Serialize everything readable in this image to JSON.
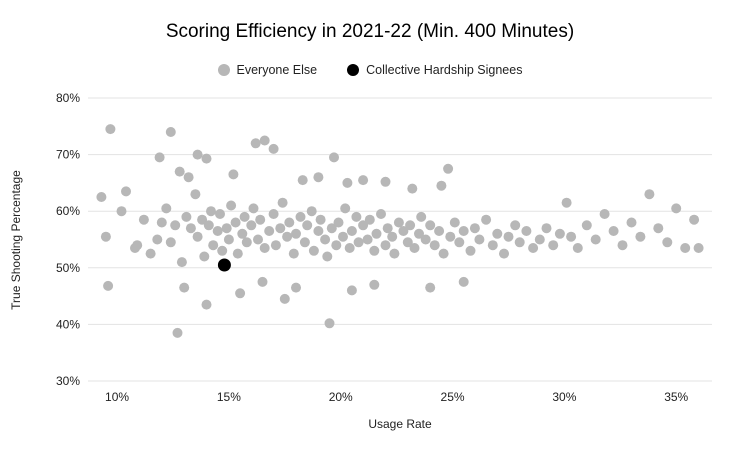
{
  "chart_data": {
    "type": "scatter",
    "title": "Scoring Efficiency in 2021-22 (Min. 400 Minutes)",
    "xlabel": "Usage Rate",
    "ylabel": "True Shooting Percentage",
    "xlim": [
      8.7,
      36.6
    ],
    "ylim": [
      30,
      80
    ],
    "grid": "horizontal",
    "legend_position": "top",
    "colors": {
      "background": "#ffffff",
      "gridline": "#e3e3e3",
      "text": "#222222",
      "everyone_else": "#b7b7b7",
      "signees": "#000000"
    },
    "x_ticks": [
      {
        "value": 10,
        "label": "10%"
      },
      {
        "value": 15,
        "label": "15%"
      },
      {
        "value": 20,
        "label": "20%"
      },
      {
        "value": 25,
        "label": "25%"
      },
      {
        "value": 30,
        "label": "30%"
      },
      {
        "value": 35,
        "label": "35%"
      }
    ],
    "y_ticks": [
      {
        "value": 30,
        "label": "30%"
      },
      {
        "value": 40,
        "label": "40%"
      },
      {
        "value": 50,
        "label": "50%"
      },
      {
        "value": 60,
        "label": "60%"
      },
      {
        "value": 70,
        "label": "70%"
      },
      {
        "value": 80,
        "label": "80%"
      }
    ],
    "series": [
      {
        "name": "Everyone Else",
        "color": "#b7b7b7",
        "radius": 5,
        "point_name": "scatter-point-everyone-else",
        "points": [
          [
            9.7,
            74.5
          ],
          [
            12.4,
            74.0
          ],
          [
            11.9,
            69.5
          ],
          [
            13.6,
            70.0
          ],
          [
            14.0,
            69.3
          ],
          [
            16.2,
            72.0
          ],
          [
            16.6,
            72.5
          ],
          [
            17.0,
            71.0
          ],
          [
            19.7,
            69.5
          ],
          [
            24.8,
            67.5
          ],
          [
            24.5,
            64.5
          ],
          [
            12.8,
            67.0
          ],
          [
            13.2,
            66.0
          ],
          [
            15.2,
            66.5
          ],
          [
            18.3,
            65.5
          ],
          [
            19.0,
            66.0
          ],
          [
            20.3,
            65.0
          ],
          [
            21.0,
            65.5
          ],
          [
            22.0,
            65.2
          ],
          [
            23.2,
            64.0
          ],
          [
            12.7,
            38.5
          ],
          [
            19.5,
            40.2
          ],
          [
            14.0,
            43.5
          ],
          [
            17.5,
            44.5
          ],
          [
            9.6,
            46.8
          ],
          [
            13.0,
            46.5
          ],
          [
            15.5,
            45.5
          ],
          [
            18.0,
            46.5
          ],
          [
            20.5,
            46.0
          ],
          [
            16.5,
            47.5
          ],
          [
            21.5,
            47.0
          ],
          [
            24.0,
            46.5
          ],
          [
            25.5,
            47.5
          ],
          [
            9.3,
            62.5
          ],
          [
            9.5,
            55.5
          ],
          [
            10.2,
            60.0
          ],
          [
            10.4,
            63.5
          ],
          [
            10.8,
            53.5
          ],
          [
            10.9,
            54.0
          ],
          [
            11.2,
            58.5
          ],
          [
            11.5,
            52.5
          ],
          [
            11.8,
            55.0
          ],
          [
            12.0,
            58.0
          ],
          [
            12.2,
            60.5
          ],
          [
            12.4,
            54.5
          ],
          [
            12.6,
            57.5
          ],
          [
            12.9,
            51.0
          ],
          [
            13.1,
            59.0
          ],
          [
            13.3,
            57.0
          ],
          [
            13.5,
            63.0
          ],
          [
            13.6,
            55.5
          ],
          [
            13.8,
            58.5
          ],
          [
            13.9,
            52.0
          ],
          [
            14.1,
            57.5
          ],
          [
            14.2,
            60.0
          ],
          [
            14.3,
            54.0
          ],
          [
            14.5,
            56.5
          ],
          [
            14.6,
            59.5
          ],
          [
            14.7,
            53.0
          ],
          [
            14.9,
            57.0
          ],
          [
            15.0,
            55.0
          ],
          [
            15.1,
            61.0
          ],
          [
            15.3,
            58.0
          ],
          [
            15.4,
            52.5
          ],
          [
            15.6,
            56.0
          ],
          [
            15.7,
            59.0
          ],
          [
            15.8,
            54.5
          ],
          [
            16.0,
            57.5
          ],
          [
            16.1,
            60.5
          ],
          [
            16.3,
            55.0
          ],
          [
            16.4,
            58.5
          ],
          [
            16.6,
            53.5
          ],
          [
            16.8,
            56.5
          ],
          [
            17.0,
            59.5
          ],
          [
            17.1,
            54.0
          ],
          [
            17.3,
            57.0
          ],
          [
            17.4,
            61.5
          ],
          [
            17.6,
            55.5
          ],
          [
            17.7,
            58.0
          ],
          [
            17.9,
            52.5
          ],
          [
            18.0,
            56.0
          ],
          [
            18.2,
            59.0
          ],
          [
            18.4,
            54.5
          ],
          [
            18.5,
            57.5
          ],
          [
            18.7,
            60.0
          ],
          [
            18.8,
            53.0
          ],
          [
            19.0,
            56.5
          ],
          [
            19.1,
            58.5
          ],
          [
            19.3,
            55.0
          ],
          [
            19.4,
            52.0
          ],
          [
            19.6,
            57.0
          ],
          [
            19.8,
            54.0
          ],
          [
            19.9,
            58.0
          ],
          [
            20.1,
            55.5
          ],
          [
            20.2,
            60.5
          ],
          [
            20.4,
            53.5
          ],
          [
            20.5,
            56.5
          ],
          [
            20.7,
            59.0
          ],
          [
            20.8,
            54.5
          ],
          [
            21.0,
            57.5
          ],
          [
            21.2,
            55.0
          ],
          [
            21.3,
            58.5
          ],
          [
            21.5,
            53.0
          ],
          [
            21.6,
            56.0
          ],
          [
            21.8,
            59.5
          ],
          [
            22.0,
            54.0
          ],
          [
            22.1,
            57.0
          ],
          [
            22.3,
            55.5
          ],
          [
            22.4,
            52.5
          ],
          [
            22.6,
            58.0
          ],
          [
            22.8,
            56.5
          ],
          [
            23.0,
            54.5
          ],
          [
            23.1,
            57.5
          ],
          [
            23.3,
            53.5
          ],
          [
            23.5,
            56.0
          ],
          [
            23.6,
            59.0
          ],
          [
            23.8,
            55.0
          ],
          [
            24.0,
            57.5
          ],
          [
            24.2,
            54.0
          ],
          [
            24.4,
            56.5
          ],
          [
            24.6,
            52.5
          ],
          [
            24.9,
            55.5
          ],
          [
            25.1,
            58.0
          ],
          [
            25.3,
            54.5
          ],
          [
            25.5,
            56.5
          ],
          [
            25.8,
            53.0
          ],
          [
            26.0,
            57.0
          ],
          [
            26.2,
            55.0
          ],
          [
            26.5,
            58.5
          ],
          [
            26.8,
            54.0
          ],
          [
            27.0,
            56.0
          ],
          [
            27.3,
            52.5
          ],
          [
            27.5,
            55.5
          ],
          [
            27.8,
            57.5
          ],
          [
            28.0,
            54.5
          ],
          [
            28.3,
            56.5
          ],
          [
            28.6,
            53.5
          ],
          [
            28.9,
            55.0
          ],
          [
            29.2,
            57.0
          ],
          [
            29.5,
            54.0
          ],
          [
            29.8,
            56.0
          ],
          [
            30.1,
            61.5
          ],
          [
            30.3,
            55.5
          ],
          [
            30.6,
            53.5
          ],
          [
            31.0,
            57.5
          ],
          [
            31.4,
            55.0
          ],
          [
            31.8,
            59.5
          ],
          [
            32.2,
            56.5
          ],
          [
            32.6,
            54.0
          ],
          [
            33.0,
            58.0
          ],
          [
            33.4,
            55.5
          ],
          [
            33.8,
            63.0
          ],
          [
            34.2,
            57.0
          ],
          [
            34.6,
            54.5
          ],
          [
            35.0,
            60.5
          ],
          [
            35.4,
            53.5
          ],
          [
            35.8,
            58.5
          ],
          [
            36.0,
            53.5
          ]
        ]
      },
      {
        "name": "Collective Hardship Signees",
        "color": "#000000",
        "radius": 6.5,
        "point_name": "scatter-point-signee",
        "points": [
          [
            14.8,
            50.5
          ]
        ]
      }
    ]
  }
}
